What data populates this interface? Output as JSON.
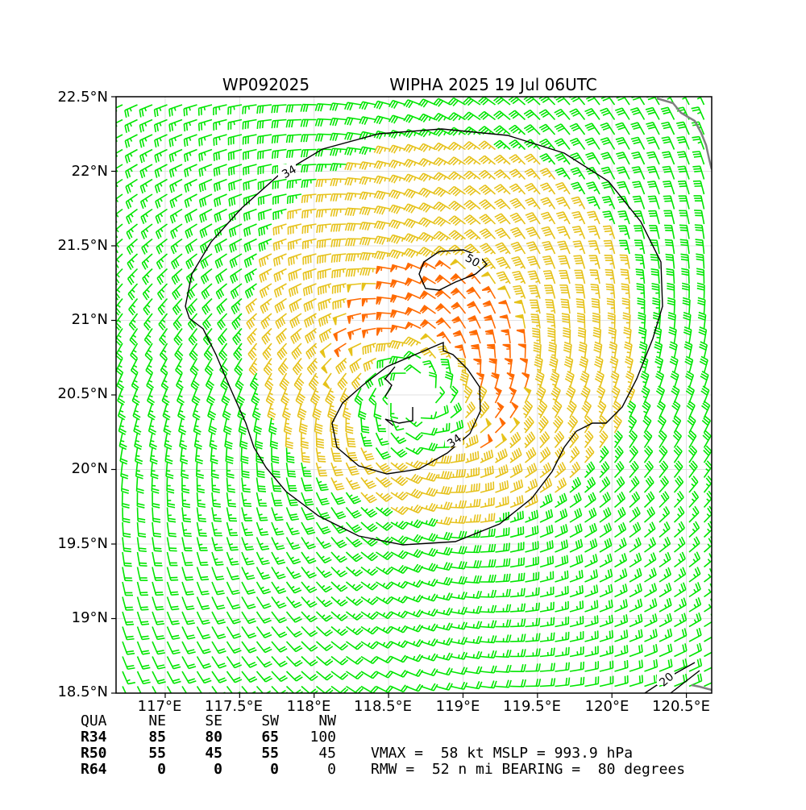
{
  "header": {
    "storm_id": "WP092025",
    "storm_title": "WIPHA 2025 19 Jul 06UTC"
  },
  "map": {
    "lon_range": [
      116.67,
      120.67
    ],
    "lat_range": [
      18.5,
      22.5
    ],
    "lat_ticks": [
      "22.5°N",
      "22°N",
      "21.5°N",
      "21°N",
      "20.5°N",
      "20°N",
      "19.5°N",
      "19°N",
      "18.5°N"
    ],
    "lon_ticks": [
      "117°E",
      "117.5°E",
      "118°E",
      "118.5°E",
      "119°E",
      "119.5°E",
      "120°E",
      "120.5°E"
    ],
    "contour_labels": [
      "34",
      "50",
      "34",
      "20"
    ],
    "center": {
      "lon": 118.67,
      "lat": 20.5
    },
    "rmw_nm": 52,
    "colors": {
      "below_34": "#00e600",
      "gale_34_50": "#e6c21a",
      "storm_50_64": "#ff6a00",
      "contour": "#000000",
      "coast": "#808080"
    }
  },
  "radii_table": {
    "header": [
      "QUA",
      "NE",
      "SE",
      "SW",
      "NW"
    ],
    "rows": [
      [
        "R34",
        "85",
        "80",
        "65",
        "100"
      ],
      [
        "R50",
        "55",
        "45",
        "55",
        "45"
      ],
      [
        "R64",
        "0",
        "0",
        "0",
        "0"
      ]
    ]
  },
  "summary": {
    "line1": "VMAX =  58 kt MSLP = 993.9 hPa",
    "line2": "RMW =  52 n mi BEARING =  80 degrees"
  }
}
